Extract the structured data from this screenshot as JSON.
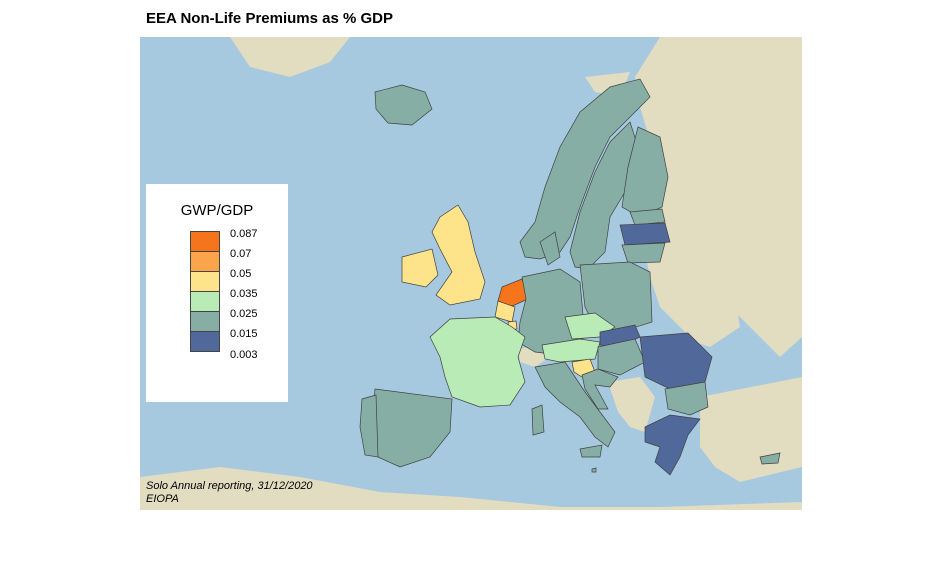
{
  "title": "EEA Non-Life Premiums as % GDP",
  "legend": {
    "title": "GWP/GDP",
    "breaks": [
      "0.087",
      "0.07",
      "0.05",
      "0.035",
      "0.025",
      "0.015",
      "0.003"
    ],
    "colors": [
      "#f5741c",
      "#fba44c",
      "#fde38a",
      "#b8ebb5",
      "#87aea4",
      "#50689a"
    ]
  },
  "source": {
    "line1": "Solo Annual reporting, 31/12/2020",
    "line2": "EIOPA"
  },
  "colors": {
    "sea": "#a6c9df",
    "non_eea_land": "#e2dcc1",
    "border": "#404040"
  }
}
